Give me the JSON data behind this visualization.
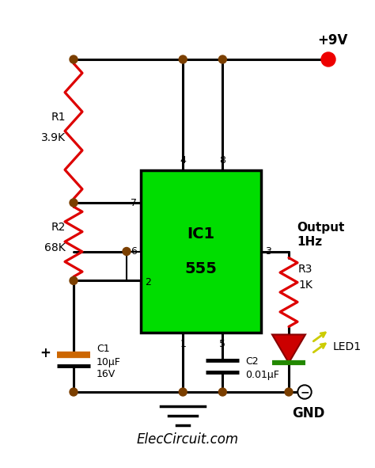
{
  "bg_color": "#ffffff",
  "ic_color": "#00dd00",
  "ic_label1": "IC1",
  "ic_label2": "555",
  "title": "ElecCircuit.com",
  "vcc_label": "+9V",
  "gnd_label": "GND",
  "output_label1": "Output",
  "output_label2": "1Hz",
  "r1_label1": "R1",
  "r1_label2": "3.9K",
  "r2_label1": "R2",
  "r2_label2": "68K",
  "r3_label1": "R3",
  "r3_label2": "1K",
  "c1_label1": "C1",
  "c1_label2": "10μF",
  "c1_label3": "16V",
  "c2_label1": "C2",
  "c2_label2": "0.01μF",
  "led_label": "LED1",
  "resistor_color": "#dd0000",
  "wire_color": "#000000",
  "junction_color": "#7b3f00",
  "vcc_color": "#ee0000",
  "led_body_color": "#cc0000",
  "led_bar_color": "#228800",
  "led_arrow_color": "#cccc00",
  "cap_c1_color": "#cc6600",
  "pin4_label": "4",
  "pin8_label": "8",
  "pin7_label": "7",
  "pin6_label": "6",
  "pin2_label": "2",
  "pin1_label": "1",
  "pin5_label": "5",
  "pin3_label": "3"
}
